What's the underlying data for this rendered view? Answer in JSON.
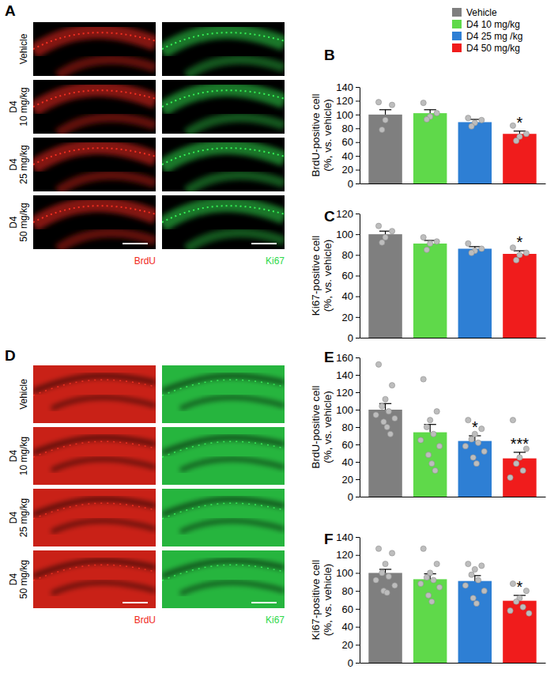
{
  "image_panels": [
    {
      "title": "A",
      "rows": [
        [
          "Vehicle"
        ],
        [
          "D4",
          "10 mg/kg"
        ],
        [
          "D4",
          "25 mg/kg"
        ],
        [
          "D4",
          "50 mg/kg"
        ]
      ],
      "columns": [
        {
          "label": "BrdU",
          "color": "#f0281c"
        },
        {
          "label": "Ki67",
          "color": "#2ed84a"
        }
      ]
    },
    {
      "title": "D",
      "rows": [
        [
          "Vehicle"
        ],
        [
          "D4",
          "10 mg/kg"
        ],
        [
          "D4",
          "25 mg/kg"
        ],
        [
          "D4",
          "50 mg/kg"
        ]
      ],
      "columns": [
        {
          "label": "BrdU",
          "color": "#f0281c"
        },
        {
          "label": "Ki67",
          "color": "#2ed84a"
        }
      ]
    }
  ],
  "shared_legend": {
    "entries": [
      {
        "name": "Vehicle",
        "color": "#7f7f7f"
      },
      {
        "name": "D4 10 mg/kg",
        "color": "#5fd94a"
      },
      {
        "name": "D4 25 mg /kg",
        "color": "#2e7fd4"
      },
      {
        "name": "D4 50 mg/kg",
        "color": "#f01c1c"
      }
    ]
  },
  "chart_data": [
    {
      "type": "bar",
      "title": "B",
      "ylabel": [
        "BrdU-positive cell",
        "(%, vs. vehicle)"
      ],
      "categories": [
        null,
        null,
        null,
        null
      ],
      "values": [
        100,
        102,
        89,
        72
      ],
      "errors": [
        7,
        5,
        4,
        4
      ],
      "points": [
        [
          118,
          114,
          92,
          78
        ],
        [
          117,
          102,
          97,
          93
        ],
        [
          95,
          92,
          88,
          83
        ],
        [
          84,
          72,
          68,
          62
        ]
      ],
      "colors": [
        "#7f7f7f",
        "#5fd94a",
        "#2e7fd4",
        "#f01c1c"
      ],
      "ylim": [
        0,
        140
      ],
      "yticks": [
        0,
        20,
        40,
        60,
        80,
        100,
        120,
        140
      ],
      "tick_labels": "y",
      "annotations": [
        {
          "index": 3,
          "text": "*"
        }
      ]
    },
    {
      "type": "bar",
      "title": "C",
      "ylabel": [
        "Ki67-positive cell",
        "(%, vs. vehicle)"
      ],
      "categories": [
        null,
        null,
        null,
        null
      ],
      "values": [
        100,
        91,
        86,
        81
      ],
      "errors": [
        3,
        3,
        2,
        3
      ],
      "points": [
        [
          108,
          103,
          97,
          92
        ],
        [
          97,
          93,
          91,
          85
        ],
        [
          91,
          86,
          84,
          82
        ],
        [
          87,
          82,
          80,
          75
        ]
      ],
      "colors": [
        "#7f7f7f",
        "#5fd94a",
        "#2e7fd4",
        "#f01c1c"
      ],
      "ylim": [
        0,
        120
      ],
      "yticks": [
        0,
        20,
        40,
        60,
        80,
        100,
        120
      ],
      "tick_labels": "y",
      "annotations": [
        {
          "index": 3,
          "text": "*"
        }
      ]
    },
    {
      "type": "bar",
      "title": "E",
      "ylabel": [
        "BrdU-positive cell",
        "(%, vs. vehicle)"
      ],
      "categories": [
        null,
        null,
        null,
        null
      ],
      "values": [
        100,
        74,
        64,
        44
      ],
      "errors": [
        7,
        9,
        6,
        7
      ],
      "points": [
        [
          152,
          128,
          112,
          104,
          98,
          94,
          90,
          86,
          80,
          72
        ],
        [
          135,
          98,
          88,
          80,
          72,
          65,
          58,
          48,
          38,
          30
        ],
        [
          88,
          78,
          72,
          66,
          62,
          58,
          52,
          45,
          38
        ],
        [
          88,
          55,
          45,
          38,
          30,
          22
        ]
      ],
      "colors": [
        "#7f7f7f",
        "#5fd94a",
        "#2e7fd4",
        "#f01c1c"
      ],
      "ylim": [
        0,
        160
      ],
      "yticks": [
        0,
        20,
        40,
        60,
        80,
        100,
        120,
        140,
        160
      ],
      "tick_labels": "y",
      "annotations": [
        {
          "index": 2,
          "text": "*"
        },
        {
          "index": 3,
          "text": "***"
        }
      ]
    },
    {
      "type": "bar",
      "title": "F",
      "ylabel": [
        "Ki67-positive cell",
        "(%, vs. vehicle)"
      ],
      "categories": [
        null,
        null,
        null,
        null
      ],
      "values": [
        100,
        93,
        91,
        69
      ],
      "errors": [
        4,
        6,
        6,
        6
      ],
      "points": [
        [
          127,
          122,
          110,
          100,
          96,
          92,
          86,
          80,
          78
        ],
        [
          127,
          110,
          100,
          95,
          92,
          88,
          84,
          75,
          68
        ],
        [
          110,
          108,
          104,
          98,
          92,
          86,
          80,
          72,
          66
        ],
        [
          88,
          80,
          72,
          68,
          62,
          58,
          55
        ]
      ],
      "colors": [
        "#7f7f7f",
        "#5fd94a",
        "#2e7fd4",
        "#f01c1c"
      ],
      "ylim": [
        0,
        140
      ],
      "yticks": [
        0,
        20,
        40,
        60,
        80,
        100,
        120,
        140
      ],
      "tick_labels": "y",
      "annotations": [
        {
          "index": 3,
          "text": "*"
        }
      ]
    }
  ]
}
